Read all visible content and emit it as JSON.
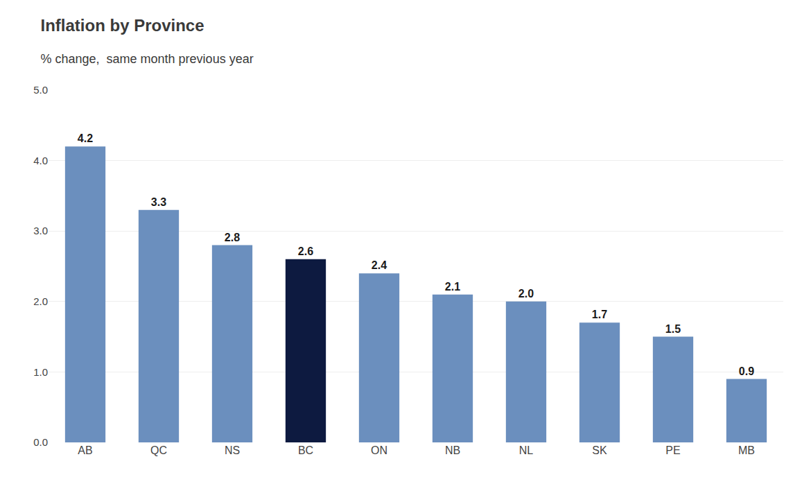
{
  "chart_data": {
    "type": "bar",
    "title": "Inflation by Province",
    "subtitle": "% change,  same month previous year",
    "categories": [
      "AB",
      "QC",
      "NS",
      "BC",
      "ON",
      "NB",
      "NL",
      "SK",
      "PE",
      "MB"
    ],
    "values": [
      4.2,
      3.3,
      2.8,
      2.6,
      2.4,
      2.1,
      2.0,
      1.7,
      1.5,
      0.9
    ],
    "value_labels": [
      "4.2",
      "3.3",
      "2.8",
      "2.6",
      "2.4",
      "2.1",
      "2.0",
      "1.7",
      "1.5",
      "0.9"
    ],
    "colors": [
      "#6b8fbe",
      "#6b8fbe",
      "#6b8fbe",
      "#0d1a40",
      "#6b8fbe",
      "#6b8fbe",
      "#6b8fbe",
      "#6b8fbe",
      "#6b8fbe",
      "#6b8fbe"
    ],
    "ylim": [
      0,
      5.0
    ],
    "yticks": [
      {
        "value": 0.0,
        "label": "0.0"
      },
      {
        "value": 1.0,
        "label": "1.0"
      },
      {
        "value": 2.0,
        "label": "2.0"
      },
      {
        "value": 3.0,
        "label": "3.0"
      },
      {
        "value": 4.0,
        "label": "4.0"
      },
      {
        "value": 5.0,
        "label": "5.0"
      }
    ],
    "grid": true,
    "data_labels": true
  }
}
